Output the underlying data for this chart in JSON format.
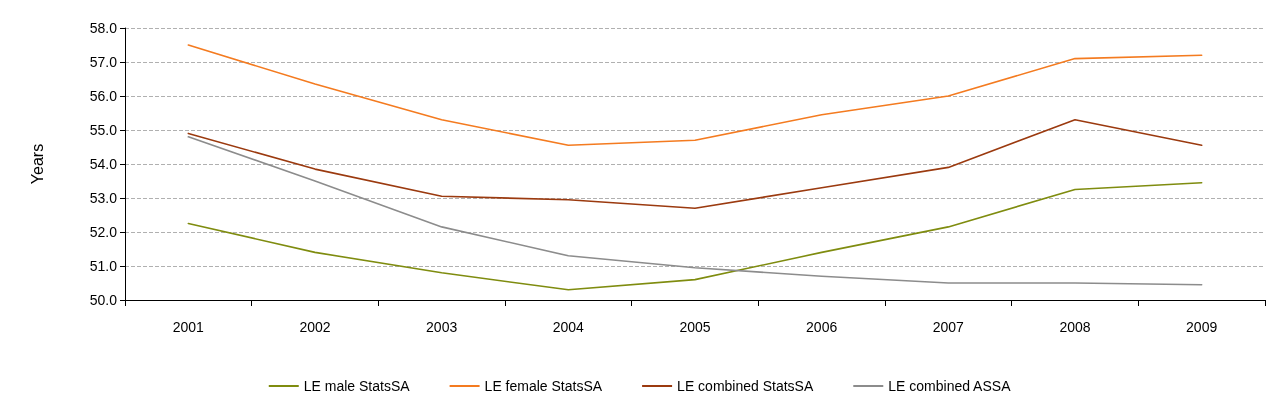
{
  "chart_data": {
    "type": "line",
    "ylabel": "Years",
    "categories": [
      "2001",
      "2002",
      "2003",
      "2004",
      "2005",
      "2006",
      "2007",
      "2008",
      "2009"
    ],
    "series": [
      {
        "name": "LE male StatsSA",
        "color": "#7f8c0f",
        "values": [
          52.25,
          51.4,
          50.8,
          50.3,
          50.6,
          51.4,
          52.15,
          53.25,
          53.45
        ]
      },
      {
        "name": "LE female StatsSA",
        "color": "#f47b20",
        "values": [
          57.5,
          56.35,
          55.3,
          54.55,
          54.7,
          55.45,
          56.0,
          57.1,
          57.2
        ]
      },
      {
        "name": "LE combined StatsSA",
        "color": "#9b3a0f",
        "values": [
          54.9,
          53.85,
          53.05,
          52.95,
          52.7,
          53.3,
          53.9,
          55.3,
          54.55
        ]
      },
      {
        "name": "LE combined ASSA",
        "color": "#8c8c8c",
        "values": [
          54.8,
          53.5,
          52.15,
          51.3,
          50.95,
          50.7,
          50.5,
          50.5,
          50.45
        ]
      }
    ],
    "ylim": [
      50,
      58
    ],
    "yticks": [
      {
        "value": 50,
        "label": "50.0"
      },
      {
        "value": 51,
        "label": "51.0"
      },
      {
        "value": 52,
        "label": "52.0"
      },
      {
        "value": 53,
        "label": "53.0"
      },
      {
        "value": 54,
        "label": "54.0"
      },
      {
        "value": 55,
        "label": "55.0"
      },
      {
        "value": 56,
        "label": "56.0"
      },
      {
        "value": 57,
        "label": "57.0"
      },
      {
        "value": 58,
        "label": "58.0"
      }
    ],
    "grid": "y",
    "legend": "bottom",
    "marker": "none",
    "line_style": "solid"
  }
}
